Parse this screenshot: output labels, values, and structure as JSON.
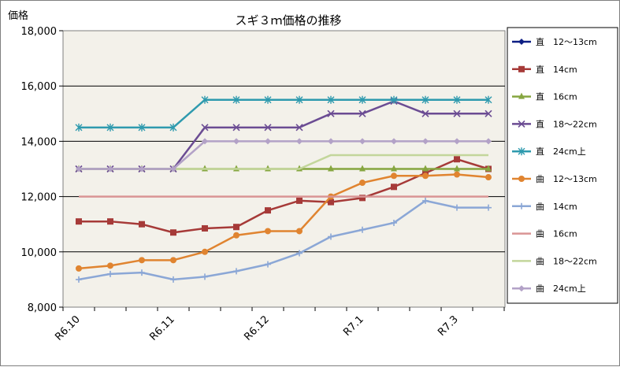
{
  "chart_data": {
    "type": "line",
    "title": "スギ３ｍ価格の推移",
    "ylabel": "価格",
    "xlabel": "",
    "ylim": [
      8000,
      18000
    ],
    "y_ticks": [
      8000,
      10000,
      12000,
      14000,
      16000,
      18000
    ],
    "y_tick_labels": [
      "8,000",
      "10,000",
      "12,000",
      "14,000",
      "16,000",
      "18,000"
    ],
    "x_tick_labels": [
      {
        "label": "R6.10",
        "index": 0
      },
      {
        "label": "R6.11",
        "index": 3
      },
      {
        "label": "R6.12",
        "index": 6
      },
      {
        "label": "R7.1",
        "index": 9
      },
      {
        "label": "R7.3",
        "index": 12
      }
    ],
    "grid": "horizontal",
    "legend_position": "right",
    "plot_background": "#f3f1ea",
    "points_per_series": 14,
    "series": [
      {
        "name": "直　12～13cm",
        "color": "#0d1e84",
        "marker": "diamond",
        "values": [
          null,
          null,
          null,
          null,
          null,
          null,
          null,
          null,
          null,
          null,
          null,
          null,
          null,
          null
        ]
      },
      {
        "name": "直　14cm",
        "color": "#a63a38",
        "marker": "square",
        "values": [
          11100,
          11100,
          11000,
          10700,
          10850,
          10900,
          11500,
          11850,
          11800,
          11950,
          12350,
          12850,
          13350,
          13000
        ]
      },
      {
        "name": "直　16cm",
        "color": "#86a640",
        "marker": "triangle",
        "values": [
          13000,
          13000,
          13000,
          13000,
          13000,
          13000,
          13000,
          13000,
          13000,
          13000,
          13000,
          13000,
          13000,
          13000
        ]
      },
      {
        "name": "直　18～22cm",
        "color": "#6b4c93",
        "marker": "x",
        "values": [
          13000,
          13000,
          13000,
          13000,
          14500,
          14500,
          14500,
          14500,
          15000,
          15000,
          15450,
          15000,
          15000,
          15000
        ]
      },
      {
        "name": "直　24cm上",
        "color": "#2e9aae",
        "marker": "star",
        "values": [
          14500,
          14500,
          14500,
          14500,
          15500,
          15500,
          15500,
          15500,
          15500,
          15500,
          15500,
          15500,
          15500,
          15500
        ]
      },
      {
        "name": "曲　12～13cm",
        "color": "#e08430",
        "marker": "circle",
        "values": [
          9400,
          9500,
          9700,
          9700,
          10000,
          10600,
          10750,
          10750,
          12000,
          12500,
          12750,
          12750,
          12800,
          12700
        ]
      },
      {
        "name": "曲　14cm",
        "color": "#8ba7d6",
        "marker": "plus",
        "values": [
          9000,
          9200,
          9250,
          9000,
          9100,
          9300,
          9550,
          9950,
          10550,
          10800,
          11050,
          11850,
          11600,
          11600
        ]
      },
      {
        "name": "曲　16cm",
        "color": "#d99595",
        "marker": "none",
        "values": [
          12000,
          12000,
          12000,
          12000,
          12000,
          12000,
          12000,
          12000,
          12000,
          12000,
          12000,
          12000,
          12000,
          12000
        ]
      },
      {
        "name": "曲　18～22cm",
        "color": "#c3d69b",
        "marker": "none",
        "values": [
          13000,
          13000,
          13000,
          13000,
          13000,
          13000,
          13000,
          13000,
          13500,
          13500,
          13500,
          13500,
          13500,
          13500
        ]
      },
      {
        "name": "曲　24cm上",
        "color": "#b3a2c7",
        "marker": "diamond",
        "values": [
          13000,
          13000,
          13000,
          13000,
          14000,
          14000,
          14000,
          14000,
          14000,
          14000,
          14000,
          14000,
          14000,
          14000
        ]
      }
    ]
  }
}
